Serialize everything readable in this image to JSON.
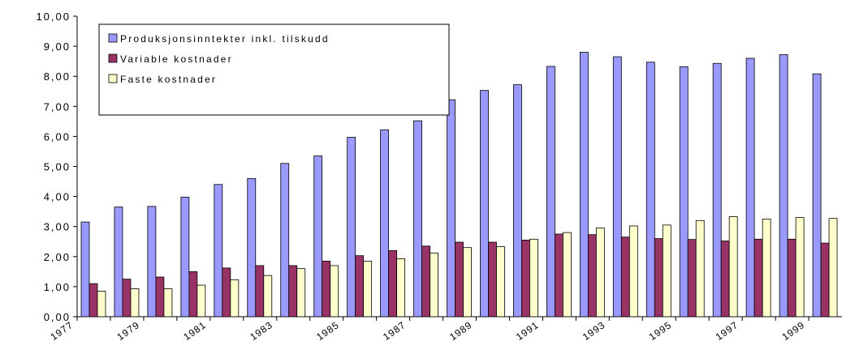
{
  "chart_data": {
    "type": "bar",
    "categories": [
      "1977",
      null,
      "1979",
      null,
      "1981",
      null,
      "1983",
      null,
      "1985",
      null,
      "1987",
      null,
      "1989",
      null,
      "1991",
      null,
      "1993",
      null,
      "1995",
      null,
      "1997",
      null,
      "1999"
    ],
    "series": [
      {
        "name": "Produksjonsinntekter inkl. tilskudd",
        "color": "#9999ff",
        "values": [
          3.15,
          3.65,
          3.67,
          3.98,
          4.4,
          4.6,
          5.1,
          5.35,
          5.97,
          6.22,
          6.52,
          7.22,
          7.53,
          7.72,
          8.33,
          8.8,
          8.65,
          8.47,
          8.32,
          8.43,
          8.6,
          8.72,
          8.08
        ]
      },
      {
        "name": "Variable kostnader",
        "color": "#993366",
        "values": [
          1.1,
          1.25,
          1.32,
          1.5,
          1.62,
          1.7,
          1.7,
          1.85,
          2.03,
          2.2,
          2.35,
          2.48,
          2.48,
          2.55,
          2.75,
          2.73,
          2.65,
          2.6,
          2.57,
          2.52,
          2.58,
          2.58,
          2.45
        ]
      },
      {
        "name": "Faste kostnader",
        "color": "#ffffcc",
        "values": [
          0.85,
          0.93,
          0.93,
          1.05,
          1.23,
          1.37,
          1.6,
          1.7,
          1.85,
          1.93,
          2.12,
          2.3,
          2.33,
          2.58,
          2.8,
          2.95,
          3.02,
          3.05,
          3.2,
          3.33,
          3.25,
          3.3,
          3.27
        ]
      }
    ],
    "ylim": [
      0,
      10
    ],
    "yticks": [
      {
        "value": 0,
        "label": "0,00"
      },
      {
        "value": 1,
        "label": "1,00"
      },
      {
        "value": 2,
        "label": "2,00"
      },
      {
        "value": 3,
        "label": "3,00"
      },
      {
        "value": 4,
        "label": "4,00"
      },
      {
        "value": 5,
        "label": "5,00"
      },
      {
        "value": 6,
        "label": "6,00"
      },
      {
        "value": 7,
        "label": "7,00"
      },
      {
        "value": 8,
        "label": "8,00"
      },
      {
        "value": 9,
        "label": "9,00"
      },
      {
        "value": 10,
        "label": "10,00"
      }
    ],
    "grid": false,
    "legend": "upper left"
  }
}
